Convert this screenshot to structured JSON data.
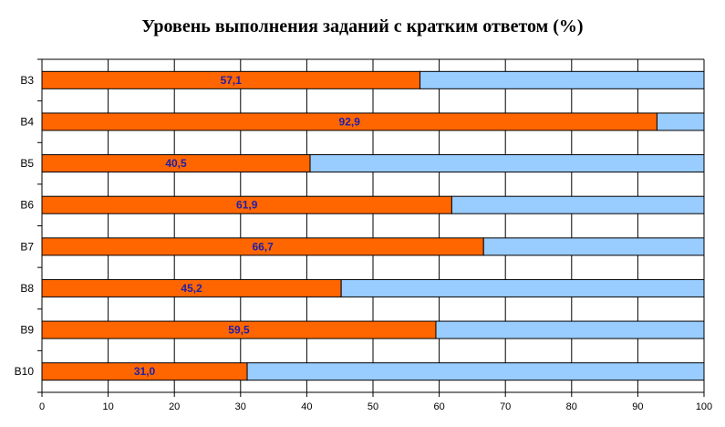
{
  "chart_data": {
    "type": "bar",
    "orientation": "horizontal",
    "stacked": true,
    "title": "Уровень выполнения заданий с кратким ответом (%)",
    "categories": [
      "B3",
      "B4",
      "B5",
      "B6",
      "B7",
      "B8",
      "B9",
      "B10"
    ],
    "values": [
      57.1,
      92.9,
      40.5,
      61.9,
      66.7,
      45.2,
      59.5,
      31.0
    ],
    "value_labels": [
      "57,1",
      "92,9",
      "40,5",
      "61,9",
      "66,7",
      "45,2",
      "59,5",
      "31,0"
    ],
    "remainder_values": [
      42.9,
      7.1,
      59.5,
      38.1,
      33.3,
      54.8,
      40.5,
      69.0
    ],
    "xlim": [
      0,
      100
    ],
    "x_ticks": [
      "0",
      "10",
      "20",
      "30",
      "40",
      "50",
      "60",
      "70",
      "80",
      "90",
      "100"
    ],
    "xlabel": "",
    "ylabel": "",
    "grid": true,
    "legend": false,
    "colors": {
      "value_bar": "#FF6600",
      "remainder_bar": "#99CCFF",
      "data_label": "#1F1FAA",
      "grid": "#000000"
    }
  }
}
